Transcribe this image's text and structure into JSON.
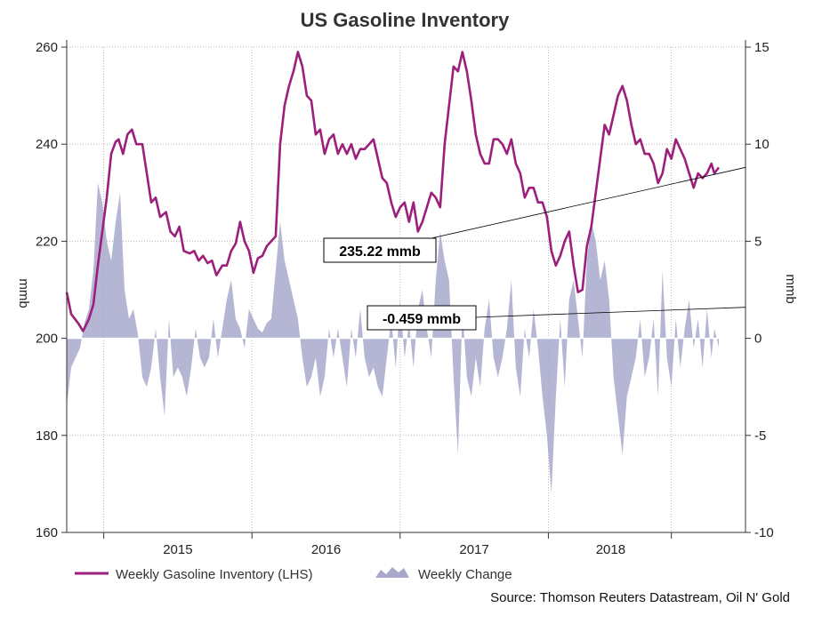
{
  "chart_data": {
    "type": "line+area",
    "title": "US Gasoline Inventory",
    "left_axis": {
      "label": "mmb",
      "min": 160,
      "max": 260,
      "ticks": [
        160,
        180,
        200,
        220,
        240,
        260
      ]
    },
    "right_axis": {
      "label": "mmb",
      "min": -10,
      "max": 15,
      "ticks": [
        -10,
        -5,
        0,
        5,
        10,
        15
      ]
    },
    "x_axis": {
      "start": 2014.25,
      "end": 2018.83,
      "year_boundaries": [
        2014.5,
        2015.5,
        2016.5,
        2017.5,
        2018.33
      ],
      "year_labels": [
        {
          "label": "2015",
          "x": 2015.0
        },
        {
          "label": "2016",
          "x": 2016.0
        },
        {
          "label": "2017",
          "x": 2017.0
        },
        {
          "label": "2018",
          "x": 2017.92
        }
      ]
    },
    "series": [
      {
        "name": "Weekly Gasoline Inventory (LHS)",
        "axis": "left",
        "color": "#9c1f7c",
        "points": [
          [
            2014.25,
            209.5
          ],
          [
            2014.28,
            205
          ],
          [
            2014.33,
            203
          ],
          [
            2014.36,
            201.5
          ],
          [
            2014.4,
            204
          ],
          [
            2014.43,
            207
          ],
          [
            2014.46,
            215
          ],
          [
            2014.49,
            222
          ],
          [
            2014.52,
            229
          ],
          [
            2014.55,
            238
          ],
          [
            2014.58,
            240.5
          ],
          [
            2014.6,
            241
          ],
          [
            2014.63,
            238
          ],
          [
            2014.66,
            242
          ],
          [
            2014.69,
            243
          ],
          [
            2014.72,
            240
          ],
          [
            2014.76,
            240
          ],
          [
            2014.79,
            234
          ],
          [
            2014.82,
            228
          ],
          [
            2014.85,
            229
          ],
          [
            2014.88,
            225
          ],
          [
            2014.92,
            226
          ],
          [
            2014.95,
            222
          ],
          [
            2014.98,
            221
          ],
          [
            2015.01,
            223
          ],
          [
            2015.04,
            218
          ],
          [
            2015.08,
            217.5
          ],
          [
            2015.11,
            218
          ],
          [
            2015.14,
            216
          ],
          [
            2015.17,
            217
          ],
          [
            2015.2,
            215.5
          ],
          [
            2015.23,
            216
          ],
          [
            2015.26,
            213
          ],
          [
            2015.3,
            215
          ],
          [
            2015.33,
            215
          ],
          [
            2015.36,
            218
          ],
          [
            2015.39,
            219.5
          ],
          [
            2015.42,
            224
          ],
          [
            2015.45,
            220
          ],
          [
            2015.48,
            218
          ],
          [
            2015.51,
            213.5
          ],
          [
            2015.54,
            216.5
          ],
          [
            2015.57,
            217
          ],
          [
            2015.6,
            219
          ],
          [
            2015.63,
            220
          ],
          [
            2015.66,
            221
          ],
          [
            2015.69,
            240
          ],
          [
            2015.72,
            248
          ],
          [
            2015.75,
            252
          ],
          [
            2015.78,
            255
          ],
          [
            2015.81,
            259
          ],
          [
            2015.84,
            256
          ],
          [
            2015.87,
            250
          ],
          [
            2015.9,
            249
          ],
          [
            2015.93,
            242
          ],
          [
            2015.96,
            243
          ],
          [
            2015.99,
            238
          ],
          [
            2016.02,
            241
          ],
          [
            2016.05,
            242
          ],
          [
            2016.08,
            238
          ],
          [
            2016.11,
            240
          ],
          [
            2016.14,
            238
          ],
          [
            2016.17,
            240
          ],
          [
            2016.2,
            237
          ],
          [
            2016.23,
            239
          ],
          [
            2016.26,
            239
          ],
          [
            2016.29,
            240
          ],
          [
            2016.32,
            241
          ],
          [
            2016.35,
            237
          ],
          [
            2016.38,
            233
          ],
          [
            2016.41,
            232
          ],
          [
            2016.44,
            228
          ],
          [
            2016.47,
            225
          ],
          [
            2016.5,
            227
          ],
          [
            2016.53,
            228
          ],
          [
            2016.56,
            224
          ],
          [
            2016.59,
            228
          ],
          [
            2016.62,
            222
          ],
          [
            2016.65,
            224
          ],
          [
            2016.68,
            227
          ],
          [
            2016.71,
            230
          ],
          [
            2016.74,
            229
          ],
          [
            2016.77,
            227
          ],
          [
            2016.8,
            240
          ],
          [
            2016.83,
            248
          ],
          [
            2016.86,
            256
          ],
          [
            2016.89,
            255
          ],
          [
            2016.92,
            259
          ],
          [
            2016.95,
            255
          ],
          [
            2016.98,
            249
          ],
          [
            2017.01,
            242
          ],
          [
            2017.04,
            238
          ],
          [
            2017.07,
            236
          ],
          [
            2017.1,
            236
          ],
          [
            2017.13,
            241
          ],
          [
            2017.16,
            241
          ],
          [
            2017.19,
            240
          ],
          [
            2017.22,
            238
          ],
          [
            2017.25,
            241
          ],
          [
            2017.28,
            236
          ],
          [
            2017.31,
            234
          ],
          [
            2017.34,
            229
          ],
          [
            2017.37,
            231
          ],
          [
            2017.4,
            231
          ],
          [
            2017.43,
            228
          ],
          [
            2017.46,
            228
          ],
          [
            2017.49,
            225
          ],
          [
            2017.52,
            218
          ],
          [
            2017.55,
            215
          ],
          [
            2017.58,
            217
          ],
          [
            2017.61,
            220
          ],
          [
            2017.64,
            222
          ],
          [
            2017.67,
            215
          ],
          [
            2017.7,
            209.5
          ],
          [
            2017.73,
            210
          ],
          [
            2017.76,
            219
          ],
          [
            2017.79,
            223
          ],
          [
            2017.82,
            230
          ],
          [
            2017.85,
            237
          ],
          [
            2017.88,
            244
          ],
          [
            2017.91,
            242
          ],
          [
            2017.94,
            246
          ],
          [
            2017.97,
            250
          ],
          [
            2018.0,
            252
          ],
          [
            2018.03,
            249
          ],
          [
            2018.06,
            244
          ],
          [
            2018.09,
            240
          ],
          [
            2018.12,
            241
          ],
          [
            2018.15,
            238
          ],
          [
            2018.18,
            238
          ],
          [
            2018.21,
            236
          ],
          [
            2018.24,
            232
          ],
          [
            2018.27,
            234
          ],
          [
            2018.3,
            239
          ],
          [
            2018.33,
            237
          ],
          [
            2018.36,
            241
          ],
          [
            2018.39,
            239
          ],
          [
            2018.42,
            237
          ],
          [
            2018.45,
            234
          ],
          [
            2018.48,
            231
          ],
          [
            2018.51,
            234
          ],
          [
            2018.54,
            233
          ],
          [
            2018.57,
            234
          ],
          [
            2018.6,
            236
          ],
          [
            2018.62,
            234
          ],
          [
            2018.65,
            235.2
          ]
        ]
      },
      {
        "name": "Weekly Change",
        "axis": "right",
        "color": "#a8a8cc",
        "points": [
          [
            2014.25,
            -3.5
          ],
          [
            2014.28,
            -1.5
          ],
          [
            2014.31,
            -1
          ],
          [
            2014.34,
            -0.5
          ],
          [
            2014.37,
            0.8
          ],
          [
            2014.4,
            1.5
          ],
          [
            2014.43,
            3.5
          ],
          [
            2014.46,
            8
          ],
          [
            2014.49,
            7
          ],
          [
            2014.52,
            5
          ],
          [
            2014.55,
            4
          ],
          [
            2014.58,
            6
          ],
          [
            2014.61,
            7.5
          ],
          [
            2014.64,
            2.5
          ],
          [
            2014.67,
            1
          ],
          [
            2014.7,
            1.5
          ],
          [
            2014.73,
            0.2
          ],
          [
            2014.76,
            -2
          ],
          [
            2014.79,
            -2.5
          ],
          [
            2014.82,
            -1.5
          ],
          [
            2014.85,
            0.5
          ],
          [
            2014.88,
            -2
          ],
          [
            2014.91,
            -4
          ],
          [
            2014.94,
            1
          ],
          [
            2014.97,
            -2
          ],
          [
            2015.0,
            -1.5
          ],
          [
            2015.03,
            -2
          ],
          [
            2015.06,
            -3
          ],
          [
            2015.09,
            -1.5
          ],
          [
            2015.12,
            0.5
          ],
          [
            2015.15,
            -1
          ],
          [
            2015.18,
            -1.5
          ],
          [
            2015.21,
            -1
          ],
          [
            2015.24,
            1
          ],
          [
            2015.27,
            -1
          ],
          [
            2015.3,
            0.5
          ],
          [
            2015.33,
            2
          ],
          [
            2015.36,
            3
          ],
          [
            2015.39,
            1
          ],
          [
            2015.42,
            0.5
          ],
          [
            2015.45,
            -0.5
          ],
          [
            2015.48,
            1.5
          ],
          [
            2015.51,
            1
          ],
          [
            2015.54,
            0.5
          ],
          [
            2015.57,
            0.3
          ],
          [
            2015.6,
            0.8
          ],
          [
            2015.63,
            1
          ],
          [
            2015.66,
            3.5
          ],
          [
            2015.69,
            6
          ],
          [
            2015.72,
            4
          ],
          [
            2015.75,
            3
          ],
          [
            2015.78,
            2
          ],
          [
            2015.81,
            1
          ],
          [
            2015.84,
            -1
          ],
          [
            2015.87,
            -2.5
          ],
          [
            2015.9,
            -2
          ],
          [
            2015.93,
            -1
          ],
          [
            2015.96,
            -3
          ],
          [
            2015.99,
            -2
          ],
          [
            2016.02,
            0.5
          ],
          [
            2016.05,
            -1
          ],
          [
            2016.08,
            0.5
          ],
          [
            2016.11,
            -1
          ],
          [
            2016.14,
            -2.5
          ],
          [
            2016.17,
            0.5
          ],
          [
            2016.2,
            -1
          ],
          [
            2016.23,
            1.5
          ],
          [
            2016.26,
            -1
          ],
          [
            2016.29,
            -2
          ],
          [
            2016.32,
            -1.5
          ],
          [
            2016.35,
            -2.5
          ],
          [
            2016.38,
            -3
          ],
          [
            2016.41,
            -1
          ],
          [
            2016.44,
            1
          ],
          [
            2016.47,
            -1.5
          ],
          [
            2016.5,
            2
          ],
          [
            2016.53,
            -1
          ],
          [
            2016.56,
            0.8
          ],
          [
            2016.59,
            -1.5
          ],
          [
            2016.62,
            1.5
          ],
          [
            2016.65,
            2.5
          ],
          [
            2016.68,
            0.5
          ],
          [
            2016.71,
            -1
          ],
          [
            2016.74,
            3
          ],
          [
            2016.77,
            5.5
          ],
          [
            2016.8,
            4
          ],
          [
            2016.83,
            3
          ],
          [
            2016.86,
            -2
          ],
          [
            2016.89,
            -6
          ],
          [
            2016.92,
            1.5
          ],
          [
            2016.95,
            -2
          ],
          [
            2016.98,
            -3
          ],
          [
            2017.01,
            -1
          ],
          [
            2017.04,
            -2.5
          ],
          [
            2017.07,
            0.5
          ],
          [
            2017.1,
            2
          ],
          [
            2017.13,
            -1
          ],
          [
            2017.16,
            -2
          ],
          [
            2017.19,
            -1
          ],
          [
            2017.22,
            0.5
          ],
          [
            2017.25,
            3
          ],
          [
            2017.28,
            -1.5
          ],
          [
            2017.31,
            -3
          ],
          [
            2017.34,
            0.5
          ],
          [
            2017.37,
            -1
          ],
          [
            2017.4,
            1.5
          ],
          [
            2017.43,
            -0.5
          ],
          [
            2017.46,
            -3
          ],
          [
            2017.49,
            -5
          ],
          [
            2017.52,
            -8
          ],
          [
            2017.55,
            -3
          ],
          [
            2017.58,
            1
          ],
          [
            2017.61,
            -2.5
          ],
          [
            2017.64,
            2
          ],
          [
            2017.67,
            3
          ],
          [
            2017.7,
            1
          ],
          [
            2017.73,
            -1
          ],
          [
            2017.76,
            4
          ],
          [
            2017.79,
            6
          ],
          [
            2017.82,
            5
          ],
          [
            2017.85,
            3
          ],
          [
            2017.88,
            4
          ],
          [
            2017.91,
            2
          ],
          [
            2017.94,
            -2
          ],
          [
            2017.97,
            -4
          ],
          [
            2018.0,
            -6
          ],
          [
            2018.03,
            -3
          ],
          [
            2018.06,
            -2
          ],
          [
            2018.09,
            -1
          ],
          [
            2018.12,
            1
          ],
          [
            2018.15,
            -2
          ],
          [
            2018.18,
            -1
          ],
          [
            2018.21,
            1
          ],
          [
            2018.24,
            -3
          ],
          [
            2018.27,
            3.5
          ],
          [
            2018.3,
            -1
          ],
          [
            2018.33,
            -2.5
          ],
          [
            2018.36,
            1
          ],
          [
            2018.39,
            -1.5
          ],
          [
            2018.42,
            0.5
          ],
          [
            2018.45,
            2
          ],
          [
            2018.48,
            -0.5
          ],
          [
            2018.51,
            1
          ],
          [
            2018.54,
            -1.5
          ],
          [
            2018.57,
            1.5
          ],
          [
            2018.6,
            -1
          ],
          [
            2018.62,
            0.5
          ],
          [
            2018.65,
            -0.459
          ]
        ]
      }
    ],
    "annotations": [
      {
        "label": "235.22 mmb",
        "value": 235.22,
        "axis": "left"
      },
      {
        "label": "-0.459 mmb",
        "value": -0.459,
        "axis": "right"
      }
    ],
    "legend": [
      {
        "label": "Weekly Gasoline Inventory (LHS)",
        "kind": "line"
      },
      {
        "label": "Weekly Change",
        "kind": "area"
      }
    ],
    "source": "Source: Thomson Reuters Datastream, Oil N' Gold"
  }
}
